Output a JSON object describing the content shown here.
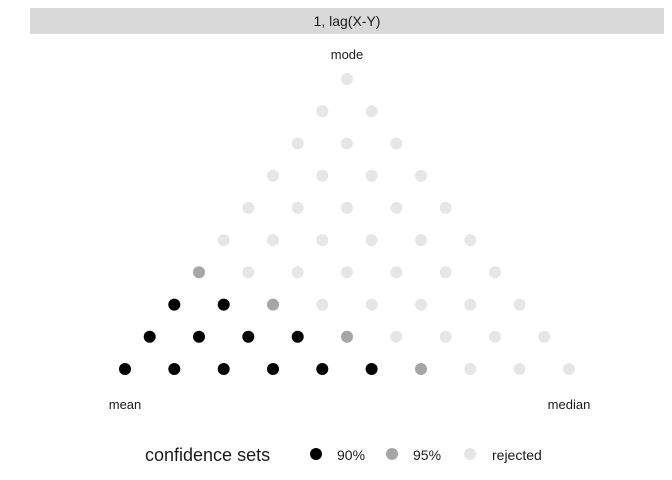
{
  "chart_data": {
    "type": "scatter",
    "panel_title": "1, lag(X-Y)",
    "corner_labels": {
      "top": "mode",
      "left": "mean",
      "right": "median"
    },
    "legend": {
      "title": "confidence sets",
      "position": "bottom",
      "items": [
        {
          "key": "90",
          "label": "90%",
          "color": "#000000"
        },
        {
          "key": "95",
          "label": "95%",
          "color": "#a6a6a6"
        },
        {
          "key": "rejected",
          "label": "rejected",
          "color": "#e6e6e6"
        }
      ]
    },
    "grid": false,
    "strip_color": "#d9d9d9",
    "rows": [
      [
        "90",
        "90",
        "90",
        "90",
        "90",
        "90",
        "95",
        "rejected",
        "rejected",
        "rejected"
      ],
      [
        "90",
        "90",
        "90",
        "90",
        "95",
        "rejected",
        "rejected",
        "rejected",
        "rejected"
      ],
      [
        "90",
        "90",
        "95",
        "rejected",
        "rejected",
        "rejected",
        "rejected",
        "rejected"
      ],
      [
        "95",
        "rejected",
        "rejected",
        "rejected",
        "rejected",
        "rejected",
        "rejected"
      ],
      [
        "rejected",
        "rejected",
        "rejected",
        "rejected",
        "rejected",
        "rejected"
      ],
      [
        "rejected",
        "rejected",
        "rejected",
        "rejected",
        "rejected"
      ],
      [
        "rejected",
        "rejected",
        "rejected",
        "rejected"
      ],
      [
        "rejected",
        "rejected",
        "rejected"
      ],
      [
        "rejected",
        "rejected"
      ],
      [
        "rejected"
      ]
    ]
  }
}
